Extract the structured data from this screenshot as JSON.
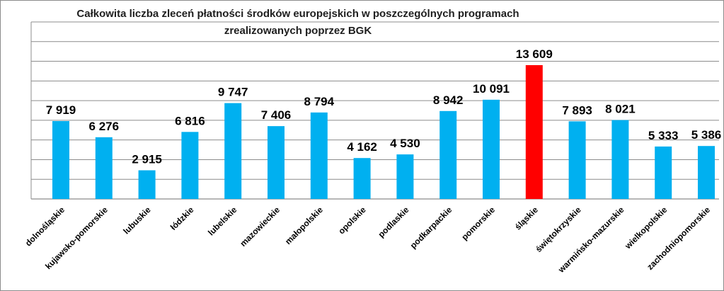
{
  "chart_data": {
    "type": "bar",
    "title_line1": "Całkowita liczba zleceń płatności środków europejskich w poszczególnych programach",
    "title_line2": "zrealizowanych poprzez BGK",
    "categories": [
      "dolnośląskie",
      "kujawsko-pomorskie",
      "lubuskie",
      "łódzkie",
      "lubelskie",
      "mazowieckie",
      "małopolskie",
      "opolskie",
      "podlaskie",
      "podkarpackie",
      "pomorskie",
      "śląskie",
      "świętokrzyskie",
      "warmińsko-mazurskie",
      "wielkopolskie",
      "zachodniopomorskie"
    ],
    "values": [
      7919,
      6276,
      2915,
      6816,
      9747,
      7406,
      8794,
      4162,
      4530,
      8942,
      10091,
      13609,
      7893,
      8021,
      5333,
      5386
    ],
    "value_labels": [
      "7 919",
      "6 276",
      "2 915",
      "6 816",
      "9 747",
      "7 406",
      "8 794",
      "4 162",
      "4 530",
      "8 942",
      "10 091",
      "13 609",
      "7 893",
      "8 021",
      "5 333",
      "5 386"
    ],
    "ylim": [
      0,
      20000
    ],
    "grid": true,
    "colors": {
      "default_bar": "#00b0f0",
      "highlight_bar": "#ff0000",
      "gridline": "#8c8c8c"
    },
    "highlight_category": "śląskie"
  }
}
